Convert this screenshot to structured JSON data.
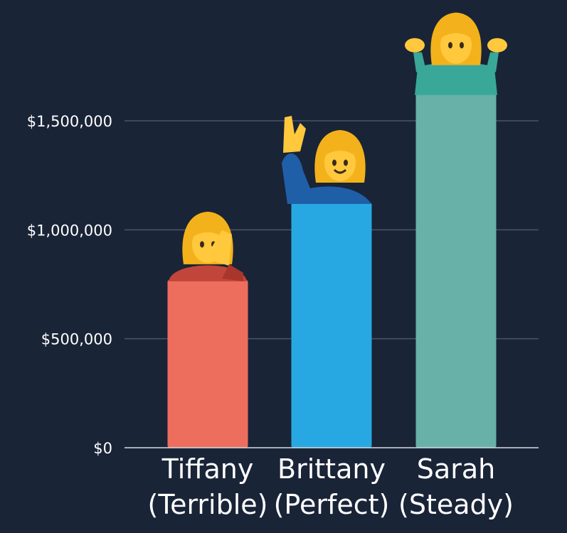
{
  "chart_data": {
    "type": "bar",
    "categories": [
      [
        "Tiffany",
        "(Terrible)"
      ],
      [
        "Brittany",
        "(Perfect)"
      ],
      [
        "Sarah",
        "(Steady)"
      ]
    ],
    "values": [
      770000,
      1125000,
      1625000
    ],
    "bar_colors": [
      "#ee6e5e",
      "#28a8e2",
      "#67b1a8"
    ],
    "figure_icons": [
      "woman-facepalming-icon",
      "woman-raising-hand-icon",
      "woman-shrugging-icon"
    ],
    "y_ticks": [
      {
        "value": 0,
        "label": "$0"
      },
      {
        "value": 500000,
        "label": "$500,000"
      },
      {
        "value": 1000000,
        "label": "$1,000,000"
      },
      {
        "value": 1500000,
        "label": "$1,500,000"
      }
    ],
    "ylim": [
      0,
      1650000
    ],
    "grid": true,
    "background": "#1a2437",
    "grid_color": "#4b5568"
  }
}
